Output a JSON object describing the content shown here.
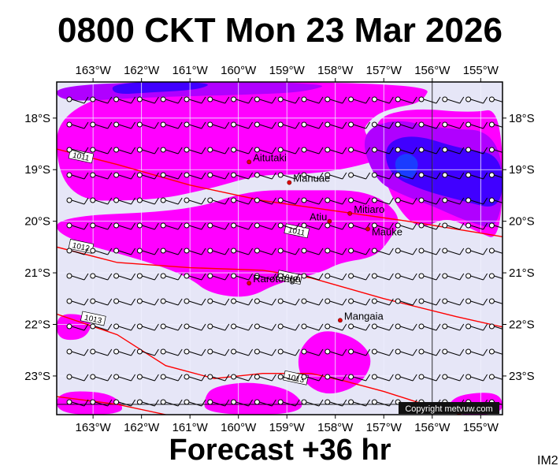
{
  "title": "0800 CKT Mon 23 Mar 2026",
  "subtitle": "Forecast +36 hr",
  "image_tag": "IM2",
  "copyright": "Copyright metvuw.com",
  "colors": {
    "background": "#e6e6f7",
    "rain_light": "#ff00ff",
    "rain_mid": "#b000ff",
    "rain_heavy": "#4000ff",
    "rain_max": "#1a3cff",
    "isobar": "#ff0000"
  },
  "axes": {
    "lon_labels": [
      "163°W",
      "162°W",
      "161°W",
      "160°W",
      "159°W",
      "158°W",
      "157°W",
      "156°W",
      "155°W"
    ],
    "lat_labels": [
      "18°S",
      "19°S",
      "20°S",
      "21°S",
      "22°S",
      "23°S"
    ],
    "lon_range": [
      -163.75,
      -154.55
    ],
    "lat_range": [
      -23.75,
      -17.3
    ]
  },
  "places": [
    {
      "name": "Aitutaki",
      "lon": -159.78,
      "lat": -18.85
    },
    {
      "name": "Manuae",
      "lon": -158.95,
      "lat": -19.25
    },
    {
      "name": "Mitiaro",
      "lon": -157.7,
      "lat": -19.85
    },
    {
      "name": "Atiu",
      "lon": -158.12,
      "lat": -20.0
    },
    {
      "name": "Mauke",
      "lon": -157.33,
      "lat": -20.15
    },
    {
      "name": "Rarotonga",
      "lon": -159.78,
      "lat": -21.2
    },
    {
      "name": "Mangaia",
      "lon": -157.9,
      "lat": -21.92
    }
  ],
  "isobars": [
    {
      "label": "1011",
      "points": [
        [
          -163.75,
          -18.6
        ],
        [
          -162.5,
          -18.9
        ],
        [
          -161.0,
          -19.3
        ],
        [
          -159.5,
          -19.6
        ],
        [
          -158.0,
          -19.8
        ],
        [
          -156.5,
          -20.0
        ],
        [
          -155.2,
          -20.2
        ],
        [
          -154.55,
          -20.3
        ]
      ]
    },
    {
      "label": "1012",
      "points": [
        [
          -163.75,
          -20.5
        ],
        [
          -162.5,
          -20.8
        ],
        [
          -161.0,
          -20.9
        ],
        [
          -159.5,
          -20.95
        ],
        [
          -158.5,
          -21.1
        ],
        [
          -157.0,
          -21.5
        ],
        [
          -155.5,
          -21.85
        ],
        [
          -154.55,
          -22.05
        ]
      ]
    },
    {
      "label": "1013",
      "points": [
        [
          -163.75,
          -21.8
        ],
        [
          -162.5,
          -22.2
        ],
        [
          -161.5,
          -22.8
        ],
        [
          -160.5,
          -23.05
        ],
        [
          -159.5,
          -22.95
        ],
        [
          -158.5,
          -22.95
        ],
        [
          -157.8,
          -23.1
        ],
        [
          -157.0,
          -23.3
        ],
        [
          -156.0,
          -23.6
        ],
        [
          -155.4,
          -23.75
        ]
      ]
    },
    {
      "label": "",
      "points": [
        [
          -163.75,
          -23.4
        ],
        [
          -162.5,
          -23.55
        ],
        [
          -161.5,
          -23.75
        ]
      ]
    }
  ],
  "isobar_labels": [
    {
      "text": "1011",
      "lon": -163.25,
      "lat": -18.75
    },
    {
      "text": "1011",
      "lon": -158.8,
      "lat": -20.2
    },
    {
      "text": "1012",
      "lon": -163.25,
      "lat": -20.5
    },
    {
      "text": "1012",
      "lon": -158.95,
      "lat": -21.1
    },
    {
      "text": "1013",
      "lon": -163.0,
      "lat": -21.9
    },
    {
      "text": "1013",
      "lon": -158.82,
      "lat": -23.05
    }
  ],
  "rain_regions": [
    {
      "level": "light",
      "points": [
        [
          -163.75,
          -17.3
        ],
        [
          -156.0,
          -17.3
        ],
        [
          -156.2,
          -17.7
        ],
        [
          -156.8,
          -17.8
        ],
        [
          -157.2,
          -17.95
        ],
        [
          -157.5,
          -18.3
        ],
        [
          -156.7,
          -18.7
        ],
        [
          -157.8,
          -19.0
        ],
        [
          -158.8,
          -19.1
        ],
        [
          -159.6,
          -19.1
        ],
        [
          -160.7,
          -19.4
        ],
        [
          -161.8,
          -19.6
        ],
        [
          -163.75,
          -19.6
        ]
      ]
    },
    {
      "level": "light",
      "points": [
        [
          -163.75,
          -19.9
        ],
        [
          -161.0,
          -19.8
        ],
        [
          -159.8,
          -19.4
        ],
        [
          -158.6,
          -19.4
        ],
        [
          -157.3,
          -19.4
        ],
        [
          -156.6,
          -19.9
        ],
        [
          -156.9,
          -20.4
        ],
        [
          -157.2,
          -20.7
        ],
        [
          -157.9,
          -20.8
        ],
        [
          -158.3,
          -21.0
        ],
        [
          -159.2,
          -21.2
        ],
        [
          -159.8,
          -21.5
        ],
        [
          -160.6,
          -21.4
        ],
        [
          -161.0,
          -21.1
        ],
        [
          -161.8,
          -20.8
        ],
        [
          -163.75,
          -20.3
        ]
      ]
    },
    {
      "level": "light",
      "points": [
        [
          -157.2,
          -18.0
        ],
        [
          -156.4,
          -17.8
        ],
        [
          -155.2,
          -17.9
        ],
        [
          -154.55,
          -17.8
        ],
        [
          -154.55,
          -20.4
        ],
        [
          -155.1,
          -20.2
        ],
        [
          -155.7,
          -19.9
        ],
        [
          -156.3,
          -20.2
        ],
        [
          -156.9,
          -19.5
        ],
        [
          -157.1,
          -18.6
        ]
      ]
    },
    {
      "level": "light",
      "points": [
        [
          -158.5,
          -22.2
        ],
        [
          -158.1,
          -22.1
        ],
        [
          -157.5,
          -22.3
        ],
        [
          -157.2,
          -22.7
        ],
        [
          -157.5,
          -23.2
        ],
        [
          -158.2,
          -23.4
        ],
        [
          -158.7,
          -23.1
        ],
        [
          -158.8,
          -22.6
        ]
      ]
    },
    {
      "level": "light",
      "points": [
        [
          -160.5,
          -23.2
        ],
        [
          -159.7,
          -23.1
        ],
        [
          -158.8,
          -23.3
        ],
        [
          -158.6,
          -23.75
        ],
        [
          -160.7,
          -23.75
        ],
        [
          -160.7,
          -23.4
        ]
      ]
    },
    {
      "level": "light",
      "points": [
        [
          -163.75,
          -21.8
        ],
        [
          -163.2,
          -21.8
        ],
        [
          -163.0,
          -22.0
        ],
        [
          -163.2,
          -22.3
        ],
        [
          -163.75,
          -22.3
        ]
      ]
    },
    {
      "level": "light",
      "points": [
        [
          -163.75,
          -23.3
        ],
        [
          -162.8,
          -23.3
        ],
        [
          -162.4,
          -23.5
        ],
        [
          -162.4,
          -23.75
        ],
        [
          -163.75,
          -23.75
        ]
      ]
    },
    {
      "level": "light",
      "points": [
        [
          -155.6,
          -23.4
        ],
        [
          -154.9,
          -23.3
        ],
        [
          -154.55,
          -23.4
        ],
        [
          -154.55,
          -23.75
        ],
        [
          -155.7,
          -23.75
        ]
      ]
    },
    {
      "level": "mid",
      "points": [
        [
          -163.75,
          -17.3
        ],
        [
          -158.0,
          -17.3
        ],
        [
          -158.6,
          -17.5
        ],
        [
          -160.0,
          -17.55
        ],
        [
          -162.0,
          -17.6
        ],
        [
          -163.75,
          -17.7
        ]
      ]
    },
    {
      "level": "mid",
      "points": [
        [
          -157.5,
          -18.3
        ],
        [
          -156.8,
          -18.0
        ],
        [
          -155.9,
          -18.2
        ],
        [
          -154.55,
          -18.25
        ],
        [
          -154.55,
          -20.2
        ],
        [
          -155.3,
          -20.0
        ],
        [
          -156.0,
          -19.7
        ],
        [
          -156.6,
          -19.5
        ],
        [
          -157.2,
          -19.2
        ]
      ]
    },
    {
      "level": "heavy",
      "points": [
        [
          -162.6,
          -17.3
        ],
        [
          -160.5,
          -17.3
        ],
        [
          -160.8,
          -17.45
        ],
        [
          -161.8,
          -17.5
        ],
        [
          -162.6,
          -17.55
        ]
      ]
    },
    {
      "level": "heavy",
      "points": [
        [
          -157.0,
          -18.5
        ],
        [
          -156.4,
          -18.3
        ],
        [
          -155.4,
          -18.6
        ],
        [
          -154.55,
          -18.7
        ],
        [
          -154.55,
          -19.8
        ],
        [
          -155.4,
          -19.6
        ],
        [
          -156.2,
          -19.4
        ],
        [
          -156.9,
          -19.1
        ]
      ]
    },
    {
      "level": "max",
      "points": [
        [
          -156.8,
          -18.8
        ],
        [
          -156.5,
          -18.65
        ],
        [
          -156.25,
          -18.85
        ],
        [
          -156.4,
          -19.2
        ],
        [
          -156.7,
          -19.15
        ]
      ]
    }
  ]
}
